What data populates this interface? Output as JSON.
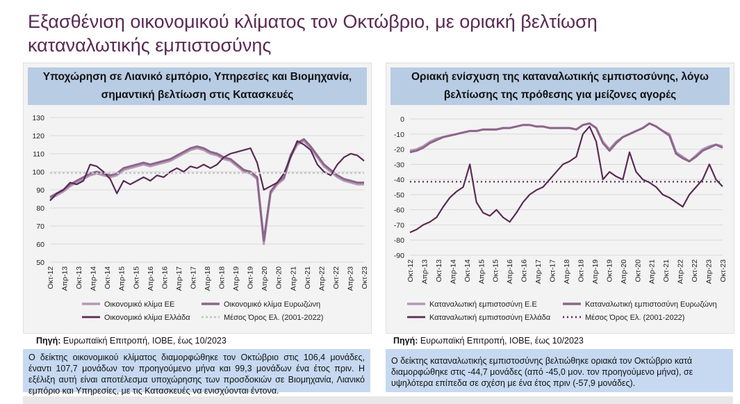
{
  "title": "Εξασθένιση οικονομικού κλίματος τον Οκτώβριο, με οριακή βελτίωση καταναλωτικής εμπιστοσύνης",
  "colors": {
    "title": "#5a2a55",
    "panel_head_bg": "#b8cce4",
    "note_bg": "#c6d9f1"
  },
  "left": {
    "heading": "Υποχώρηση σε Λιανικό εμπόριο, Υπηρεσίες και Βιομηχανία, σημαντική βελτίωση στις Κατασκευές",
    "source_label": "Πηγή:",
    "source_text": " Ευρωπαϊκή Επιτροπή, ΙΟΒΕ, έως 10/2023",
    "note": "Ο δείκτης οικονομικού κλίματος διαμορφώθηκε τον Οκτώβριο στις 106,4 μονάδες, έναντι 107,7 μονάδων τον προηγούμενο μήνα και 99,3 μονάδων ένα έτος πριν. Η εξέλιξη αυτή είναι αποτέλεσμα υποχώρησης των προσδοκιών σε Βιομηχανία, Λιανικό εμπόριο και Υπηρεσίες, με τις Κατασκευές να ενισχύονται έντονα."
  },
  "right": {
    "heading": "Οριακή ενίσχυση της καταναλωτικής εμπιστοσύνης, λόγω βελτίωσης της πρόθεσης για μείζονες αγορές",
    "source_label": "Πηγή:",
    "source_text": " Ευρωπαϊκή Επιτροπή, ΙΟΒΕ, έως 10/2023",
    "note": "Ο δείκτης καταναλωτικής εμπιστοσύνης βελτιώθηκε οριακά τον Οκτώβριο κατά διαμορφώθηκε στις -44,7 μονάδες (από -45,0 μον. τον προηγούμενο μήνα), σε υψηλότερα επίπεδα σε σχέση με ένα έτος πριν (-57,9 μονάδες)."
  },
  "chart_data": [
    {
      "type": "line",
      "x_tick_labels": [
        "Οκτ-12",
        "Απρ-13",
        "Οκτ-13",
        "Απρ-14",
        "Οκτ-14",
        "Απρ-15",
        "Οκτ-15",
        "Απρ-16",
        "Οκτ-16",
        "Απρ-17",
        "Οκτ-17",
        "Απρ-18",
        "Οκτ-18",
        "Απρ-19",
        "Οκτ-19",
        "Απρ-20",
        "Οκτ-20",
        "Απρ-21",
        "Οκτ-21",
        "Απρ-22",
        "Οκτ-22",
        "Απρ-23",
        "Οκτ-23"
      ],
      "ylim": [
        50,
        130
      ],
      "yticks": [
        50,
        60,
        70,
        80,
        90,
        100,
        110,
        120,
        130
      ],
      "grid": true,
      "series": [
        {
          "name": "Οικονομικό κλίμα ΕΕ",
          "color": "#b49ab4",
          "width": 3,
          "values": [
            85,
            87,
            89,
            92,
            94,
            96,
            98,
            99,
            98,
            97,
            98,
            101,
            102,
            103,
            104,
            103,
            104,
            105,
            106,
            108,
            110,
            112,
            113,
            112,
            110,
            109,
            107,
            106,
            103,
            100,
            99,
            96,
            60,
            88,
            93,
            96,
            108,
            115,
            117,
            113,
            108,
            103,
            100,
            97,
            95,
            94,
            93,
            93
          ]
        },
        {
          "name": "Οικονομικό κλίμα Ευρωζώνη",
          "color": "#8c668c",
          "width": 3,
          "values": [
            86,
            88,
            90,
            93,
            95,
            97,
            99,
            100,
            99,
            98,
            99,
            102,
            103,
            104,
            105,
            104,
            105,
            106,
            107,
            109,
            111,
            113,
            114,
            113,
            111,
            110,
            108,
            107,
            104,
            101,
            100,
            97,
            62,
            89,
            94,
            97,
            109,
            116,
            118,
            114,
            109,
            104,
            101,
            98,
            96,
            95,
            94,
            94
          ]
        },
        {
          "name": "Οικονομικό κλίμα Ελλάδα",
          "color": "#5a2a55",
          "width": 2.2,
          "values": [
            84,
            88,
            90,
            94,
            93,
            95,
            104,
            103,
            100,
            96,
            88,
            95,
            93,
            95,
            97,
            95,
            98,
            97,
            100,
            102,
            100,
            103,
            102,
            104,
            102,
            104,
            108,
            110,
            111,
            112,
            113,
            105,
            90,
            92,
            94,
            99,
            108,
            117,
            115,
            112,
            104,
            100,
            98,
            104,
            108,
            110,
            109,
            106
          ]
        },
        {
          "name": "Μέσος Όρος Ελ. (2001-2022)",
          "color": "#c8c8c8",
          "width": 2.5,
          "dash": "3,3",
          "values": [
            99.3
          ]
        }
      ]
    },
    {
      "type": "line",
      "x_tick_labels": [
        "Οκτ-12",
        "Απρ-13",
        "Οκτ-13",
        "Απρ-14",
        "Οκτ-14",
        "Απρ-15",
        "Οκτ-15",
        "Απρ-16",
        "Οκτ-16",
        "Απρ-17",
        "Οκτ-17",
        "Απρ-18",
        "Οκτ-18",
        "Απρ-19",
        "Οκτ-19",
        "Απρ-20",
        "Οκτ-20",
        "Απρ-21",
        "Οκτ-21",
        "Απρ-22",
        "Οκτ-22",
        "Απρ-23",
        "Οκτ-23"
      ],
      "ylim": [
        -90,
        0
      ],
      "yticks": [
        0,
        -10,
        -20,
        -30,
        -40,
        -50,
        -60,
        -70,
        -80,
        -90
      ],
      "grid": true,
      "series": [
        {
          "name": "Καταναλωτική εμπιστοσύνη Ε.Ε",
          "color": "#b49ab4",
          "width": 3,
          "values": [
            -21,
            -20,
            -18,
            -15,
            -13,
            -12,
            -11,
            -10,
            -9,
            -8,
            -8,
            -7,
            -7,
            -7,
            -6,
            -6,
            -5,
            -4,
            -4,
            -5,
            -5,
            -6,
            -6,
            -6,
            -6,
            -7,
            -4,
            -3,
            -6,
            -15,
            -20,
            -15,
            -12,
            -10,
            -8,
            -6,
            -3,
            -5,
            -8,
            -10,
            -22,
            -25,
            -28,
            -24,
            -20,
            -18,
            -17,
            -18
          ]
        },
        {
          "name": "Καταναλωτική εμπιστοσύνη Ευρωζώνη",
          "color": "#8c668c",
          "width": 3,
          "values": [
            -22,
            -21,
            -19,
            -16,
            -14,
            -12,
            -11,
            -10,
            -9,
            -8,
            -8,
            -7,
            -7,
            -7,
            -6,
            -6,
            -5,
            -4,
            -4,
            -5,
            -5,
            -6,
            -6,
            -6,
            -6,
            -7,
            -4,
            -3,
            -6,
            -16,
            -21,
            -16,
            -12,
            -10,
            -8,
            -6,
            -3,
            -5,
            -8,
            -11,
            -23,
            -26,
            -28,
            -25,
            -21,
            -19,
            -17,
            -19
          ]
        },
        {
          "name": "Καταναλωτική εμπιστοσύνη Ελλάδα",
          "color": "#5a2a55",
          "width": 2.2,
          "values": [
            -75,
            -73,
            -70,
            -68,
            -65,
            -58,
            -52,
            -48,
            -45,
            -30,
            -55,
            -62,
            -64,
            -60,
            -65,
            -68,
            -62,
            -55,
            -50,
            -47,
            -45,
            -40,
            -35,
            -30,
            -28,
            -25,
            -10,
            -5,
            -15,
            -40,
            -35,
            -38,
            -40,
            -22,
            -35,
            -40,
            -42,
            -45,
            -50,
            -52,
            -55,
            -58,
            -50,
            -45,
            -40,
            -30,
            -40,
            -44.7
          ]
        },
        {
          "name": "Μέσος Όρος Ελ. (2001-2022)",
          "color": "#5a2a55",
          "width": 2.2,
          "dash": "2,4",
          "values": [
            -41.5
          ]
        }
      ]
    }
  ]
}
